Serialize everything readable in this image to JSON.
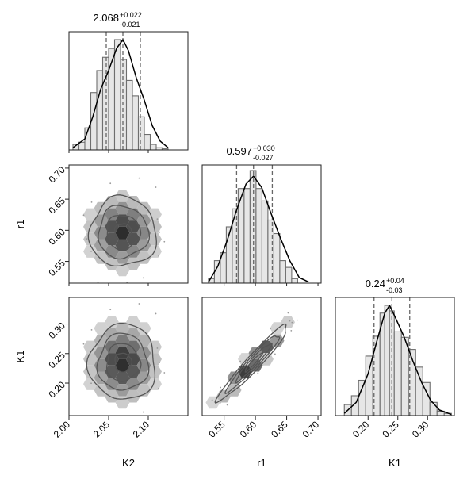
{
  "chart_data": {
    "type": "corner",
    "parameters": [
      {
        "name": "K2",
        "range": [
          2.0,
          2.15
        ],
        "ticks": [
          2.0,
          2.05,
          2.1
        ],
        "tick_labels": [
          "2.00",
          "2.05",
          "2.10"
        ],
        "title_value": "2.068",
        "title_plus": "+0.022",
        "title_minus": "-0.021",
        "quantiles": [
          2.047,
          2.068,
          2.09
        ],
        "hist_edges": [
          2.005,
          2.0125,
          2.02,
          2.0275,
          2.035,
          2.0425,
          2.05,
          2.0575,
          2.065,
          2.0725,
          2.08,
          2.0875,
          2.095,
          2.1025,
          2.11,
          2.1175,
          2.125
        ],
        "hist_counts": [
          0.05,
          0.07,
          0.2,
          0.52,
          0.72,
          0.84,
          0.92,
          1.0,
          0.82,
          0.63,
          0.49,
          0.3,
          0.14,
          0.05,
          0.02,
          0.01
        ]
      },
      {
        "name": "r1",
        "range": [
          0.515,
          0.705
        ],
        "ticks": [
          0.55,
          0.6,
          0.65,
          0.7
        ],
        "tick_labels": [
          "0.55",
          "0.60",
          "0.65",
          "0.70"
        ],
        "title_value": "0.597",
        "title_plus": "+0.030",
        "title_minus": "-0.027",
        "quantiles": [
          0.57,
          0.597,
          0.627
        ],
        "hist_edges": [
          0.525,
          0.5345,
          0.544,
          0.5535,
          0.563,
          0.5725,
          0.582,
          0.5915,
          0.601,
          0.6105,
          0.62,
          0.6295,
          0.639,
          0.6485,
          0.658,
          0.6675
        ],
        "hist_counts": [
          0.04,
          0.2,
          0.27,
          0.5,
          0.66,
          0.84,
          0.84,
          1.0,
          0.84,
          0.73,
          0.56,
          0.44,
          0.2,
          0.14,
          0.04
        ]
      },
      {
        "name": "K1",
        "range": [
          0.145,
          0.345
        ],
        "ticks": [
          0.2,
          0.25,
          0.3
        ],
        "tick_labels": [
          "0.20",
          "0.25",
          "0.30"
        ],
        "title_value": "0.24",
        "title_plus": "+0.04",
        "title_minus": "-0.03",
        "quantiles": [
          0.21,
          0.24,
          0.27
        ],
        "hist_edges": [
          0.16,
          0.172,
          0.184,
          0.196,
          0.208,
          0.22,
          0.228,
          0.236,
          0.244,
          0.256,
          0.268,
          0.28,
          0.292,
          0.304,
          0.316,
          0.328,
          0.34
        ],
        "hist_counts": [
          0.1,
          0.18,
          0.32,
          0.54,
          0.72,
          0.93,
          1.0,
          0.95,
          0.76,
          0.71,
          0.6,
          0.44,
          0.3,
          0.12,
          0.04,
          0.02
        ]
      }
    ],
    "kde_points": [
      [
        [
          2.005,
          0.02
        ],
        [
          2.02,
          0.1
        ],
        [
          2.03,
          0.3
        ],
        [
          2.04,
          0.55
        ],
        [
          2.05,
          0.72
        ],
        [
          2.06,
          0.92
        ],
        [
          2.068,
          1.0
        ],
        [
          2.075,
          0.9
        ],
        [
          2.085,
          0.65
        ],
        [
          2.095,
          0.45
        ],
        [
          2.105,
          0.22
        ],
        [
          2.115,
          0.08
        ],
        [
          2.125,
          0.02
        ]
      ],
      [
        [
          0.525,
          0.01
        ],
        [
          0.54,
          0.15
        ],
        [
          0.555,
          0.38
        ],
        [
          0.57,
          0.65
        ],
        [
          0.585,
          0.88
        ],
        [
          0.597,
          0.95
        ],
        [
          0.61,
          0.85
        ],
        [
          0.625,
          0.62
        ],
        [
          0.64,
          0.4
        ],
        [
          0.655,
          0.2
        ],
        [
          0.67,
          0.05
        ],
        [
          0.685,
          0.01
        ]
      ],
      [
        [
          0.16,
          0.02
        ],
        [
          0.18,
          0.12
        ],
        [
          0.2,
          0.38
        ],
        [
          0.215,
          0.68
        ],
        [
          0.228,
          0.93
        ],
        [
          0.236,
          1.0
        ],
        [
          0.245,
          0.9
        ],
        [
          0.26,
          0.72
        ],
        [
          0.275,
          0.5
        ],
        [
          0.29,
          0.3
        ],
        [
          0.305,
          0.14
        ],
        [
          0.32,
          0.05
        ],
        [
          0.34,
          0.01
        ]
      ]
    ],
    "pairs": [
      {
        "x": "K2",
        "y": "r1",
        "center": [
          2.068,
          0.597
        ],
        "sd": [
          0.021,
          0.028
        ],
        "rho": 0.0
      },
      {
        "x": "K2",
        "y": "K1",
        "center": [
          2.068,
          0.235
        ],
        "sd": [
          0.021,
          0.032
        ],
        "rho": 0.0
      },
      {
        "x": "r1",
        "y": "K1",
        "center": [
          0.597,
          0.235
        ],
        "sd": [
          0.028,
          0.032
        ],
        "rho": 0.96
      }
    ],
    "contour_levels_sigma": [
      0.5,
      1.0,
      1.5,
      2.0
    ],
    "grid": false,
    "legend": "none"
  }
}
